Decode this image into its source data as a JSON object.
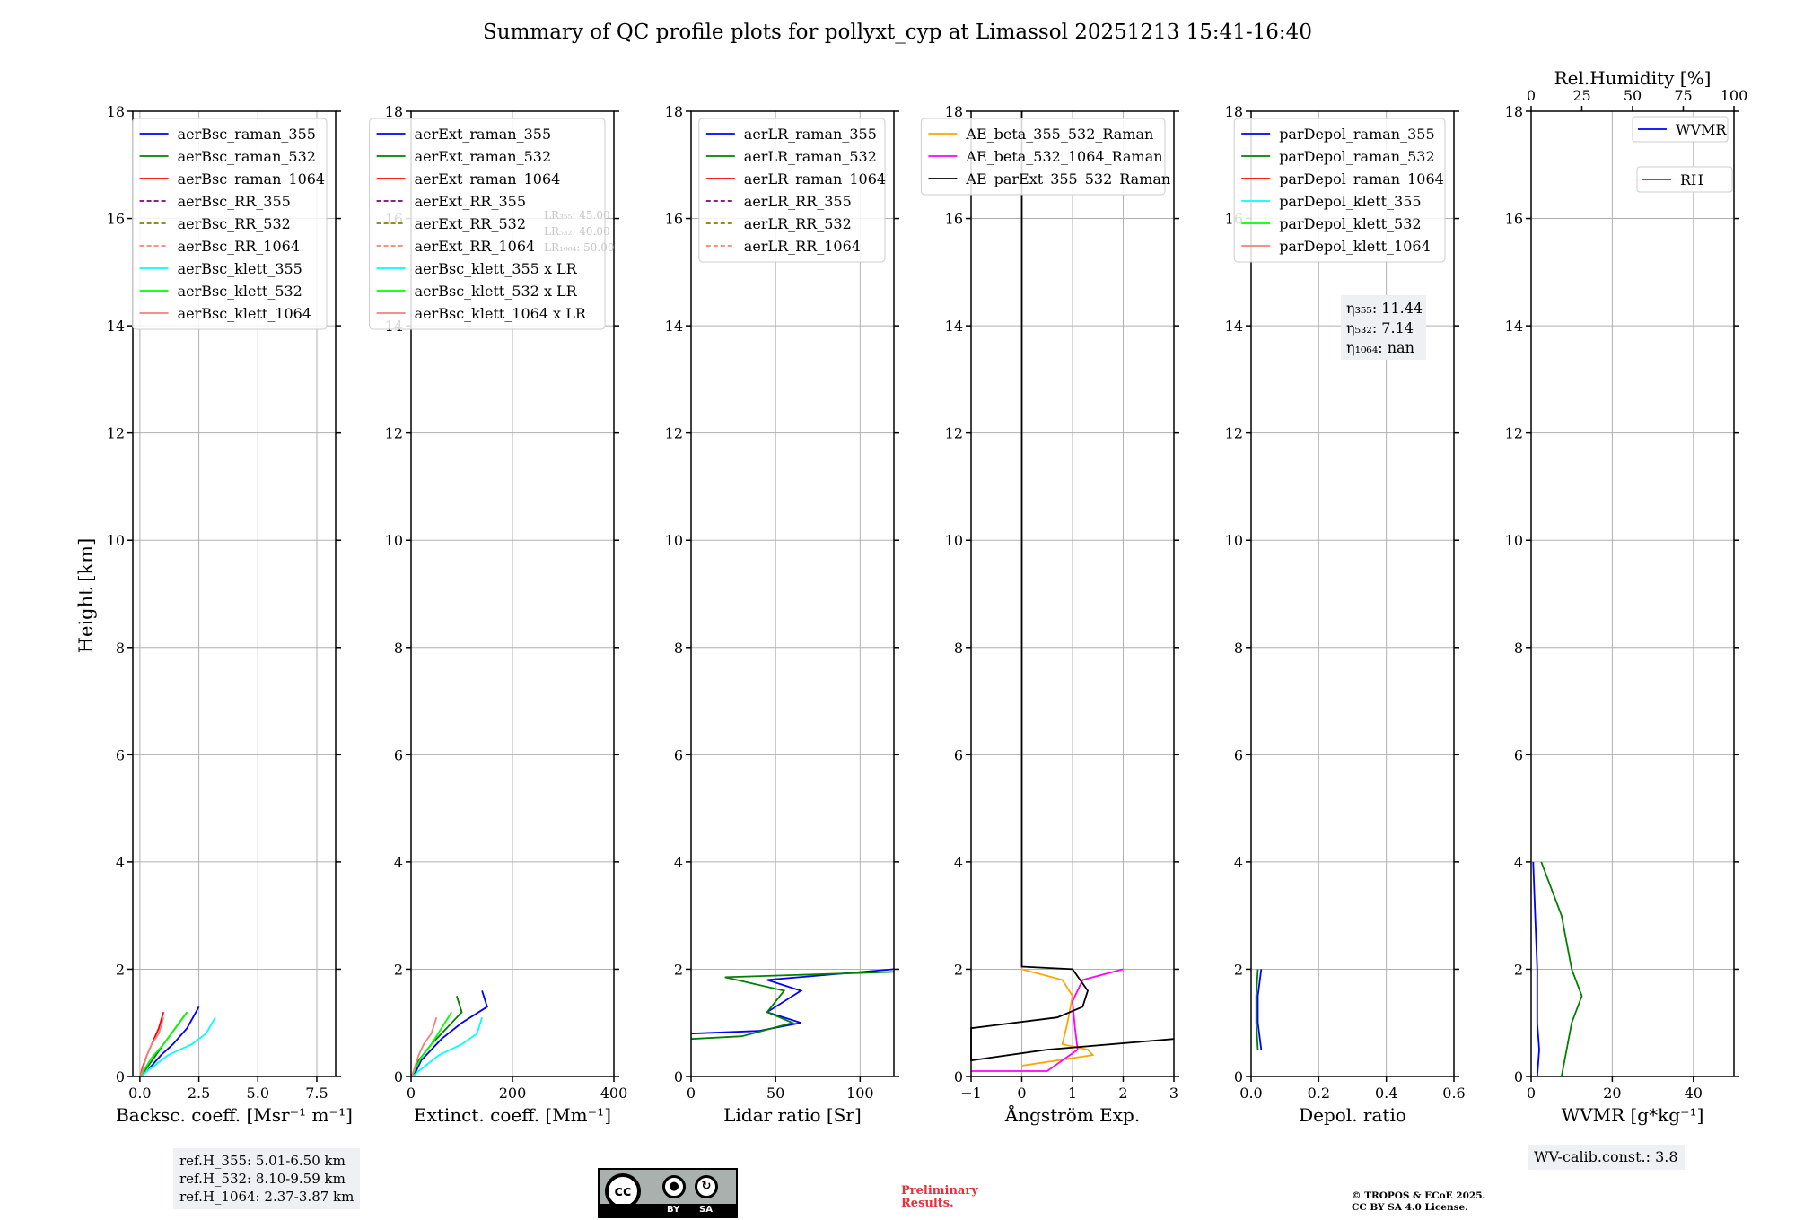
{
  "title": "Summary of QC profile plots for pollyxt_cyp at Limassol 20251213 15:41-16:40",
  "ylabel": "Height [km]",
  "ylim": [
    0,
    18
  ],
  "yticks": [
    0,
    2,
    4,
    6,
    8,
    10,
    12,
    14,
    16,
    18
  ],
  "chart_data": [
    {
      "type": "line",
      "panel": "backscatter",
      "xlabel": "Backsc. coeff. [Msr⁻¹ m⁻¹]",
      "xlim": [
        -0.3,
        8.3
      ],
      "xticks": [
        0,
        2.5,
        5,
        7.5
      ],
      "xtick_labels": [
        "0.0",
        "2.5",
        "5.0",
        "7.5"
      ],
      "legend_position": "top-right",
      "series": [
        {
          "name": "aerBsc_raman_355",
          "color": "#0000ff",
          "dash": "solid",
          "x": [
            2.5,
            2.0,
            1.4,
            0.9,
            0.3,
            0.05
          ],
          "y": [
            1.3,
            0.9,
            0.6,
            0.4,
            0.1,
            0
          ]
        },
        {
          "name": "aerBsc_raman_532",
          "color": "#008000",
          "dash": "solid",
          "x": [
            2.0,
            1.5,
            1.0,
            0.6,
            0.2,
            0.05
          ],
          "y": [
            1.2,
            0.9,
            0.6,
            0.35,
            0.1,
            0
          ]
        },
        {
          "name": "aerBsc_raman_1064",
          "color": "#ff0000",
          "dash": "solid",
          "x": [
            1.0,
            0.8,
            0.5,
            0.3,
            0.1,
            0.02
          ],
          "y": [
            1.2,
            0.9,
            0.6,
            0.4,
            0.15,
            0
          ]
        },
        {
          "name": "aerBsc_RR_355",
          "color": "#800080",
          "dash": "dashed",
          "x": [],
          "y": []
        },
        {
          "name": "aerBsc_RR_532",
          "color": "#808000",
          "dash": "dashed",
          "x": [],
          "y": []
        },
        {
          "name": "aerBsc_RR_1064",
          "color": "#fa8072",
          "dash": "dashed",
          "x": [],
          "y": []
        },
        {
          "name": "aerBsc_klett_355",
          "color": "#00ffff",
          "dash": "solid",
          "x": [
            3.2,
            2.8,
            2.2,
            1.2,
            0.3,
            0.05
          ],
          "y": [
            1.1,
            0.8,
            0.6,
            0.4,
            0.1,
            0
          ]
        },
        {
          "name": "aerBsc_klett_532",
          "color": "#00ff00",
          "dash": "solid",
          "x": [
            2.0,
            1.5,
            1.0,
            0.5,
            0.15,
            0.03
          ],
          "y": [
            1.2,
            0.9,
            0.6,
            0.35,
            0.1,
            0
          ]
        },
        {
          "name": "aerBsc_klett_1064",
          "color": "#f08080",
          "dash": "solid",
          "x": [
            1.0,
            0.8,
            0.5,
            0.3,
            0.1,
            0.02
          ],
          "y": [
            1.1,
            0.8,
            0.6,
            0.4,
            0.1,
            0
          ]
        }
      ]
    },
    {
      "type": "line",
      "panel": "extinction",
      "xlabel": "Extinct. coeff. [Mm⁻¹]",
      "xlim": [
        0,
        400
      ],
      "xticks": [
        0,
        200,
        400
      ],
      "xtick_labels": [
        "0",
        "200",
        "400"
      ],
      "legend_position": "top-right",
      "annotations": [
        "LR₃₅₅: 45.00",
        "LR₅₃₂: 40.00",
        "LR₁₀₆₄: 50.00"
      ],
      "series": [
        {
          "name": "aerExt_raman_355",
          "color": "#0000ff",
          "dash": "solid",
          "x": [
            140,
            150,
            100,
            60,
            20,
            5
          ],
          "y": [
            1.6,
            1.3,
            1.0,
            0.7,
            0.3,
            0
          ]
        },
        {
          "name": "aerExt_raman_532",
          "color": "#008000",
          "dash": "solid",
          "x": [
            90,
            100,
            70,
            40,
            15,
            3
          ],
          "y": [
            1.5,
            1.2,
            0.9,
            0.6,
            0.3,
            0
          ]
        },
        {
          "name": "aerExt_raman_1064",
          "color": "#ff0000",
          "dash": "solid",
          "x": [],
          "y": []
        },
        {
          "name": "aerExt_RR_355",
          "color": "#800080",
          "dash": "dashed",
          "x": [],
          "y": []
        },
        {
          "name": "aerExt_RR_532",
          "color": "#808000",
          "dash": "dashed",
          "x": [],
          "y": []
        },
        {
          "name": "aerExt_RR_1064",
          "color": "#fa8072",
          "dash": "dashed",
          "x": [],
          "y": []
        },
        {
          "name": "aerBsc_klett_355 x LR",
          "color": "#00ffff",
          "dash": "solid",
          "x": [
            140,
            130,
            100,
            55,
            15,
            3
          ],
          "y": [
            1.1,
            0.8,
            0.6,
            0.4,
            0.1,
            0
          ]
        },
        {
          "name": "aerBsc_klett_532 x LR",
          "color": "#00ff00",
          "dash": "solid",
          "x": [
            80,
            60,
            40,
            20,
            6,
            1
          ],
          "y": [
            1.2,
            0.9,
            0.6,
            0.35,
            0.1,
            0
          ]
        },
        {
          "name": "aerBsc_klett_1064 x LR",
          "color": "#f08080",
          "dash": "solid",
          "x": [
            50,
            40,
            25,
            15,
            5,
            1
          ],
          "y": [
            1.1,
            0.8,
            0.6,
            0.4,
            0.1,
            0
          ]
        }
      ]
    },
    {
      "type": "line",
      "panel": "lidar_ratio",
      "xlabel": "Lidar ratio [Sr]",
      "xlim": [
        0,
        120
      ],
      "xticks": [
        0,
        50,
        100
      ],
      "xtick_labels": [
        "0",
        "50",
        "100"
      ],
      "legend_position": "top-right",
      "series": [
        {
          "name": "aerLR_raman_355",
          "color": "#0000ff",
          "dash": "solid",
          "x": [
            120,
            45,
            65,
            45,
            65,
            40,
            0
          ],
          "y": [
            2.0,
            1.8,
            1.6,
            1.2,
            1.0,
            0.85,
            0.8
          ]
        },
        {
          "name": "aerLR_raman_532",
          "color": "#008000",
          "dash": "solid",
          "x": [
            120,
            20,
            55,
            45,
            60,
            30,
            0
          ],
          "y": [
            1.95,
            1.85,
            1.6,
            1.2,
            1.0,
            0.75,
            0.7
          ]
        },
        {
          "name": "aerLR_raman_1064",
          "color": "#ff0000",
          "dash": "solid",
          "x": [],
          "y": []
        },
        {
          "name": "aerLR_RR_355",
          "color": "#800080",
          "dash": "dashed",
          "x": [],
          "y": []
        },
        {
          "name": "aerLR_RR_532",
          "color": "#808000",
          "dash": "dashed",
          "x": [],
          "y": []
        },
        {
          "name": "aerLR_RR_1064",
          "color": "#fa8072",
          "dash": "dashed",
          "x": [],
          "y": []
        }
      ]
    },
    {
      "type": "line",
      "panel": "angstrom",
      "xlabel": "Ångström Exp.",
      "xlim": [
        -1,
        3
      ],
      "xticks": [
        -1,
        0,
        1,
        2,
        3
      ],
      "xtick_labels": [
        "−1",
        "0",
        "1",
        "2",
        "3"
      ],
      "legend_position": "top-right",
      "series": [
        {
          "name": "AE_beta_355_532_Raman",
          "color": "#ffa500",
          "dash": "solid",
          "x": [
            0,
            0.8,
            1.0,
            0.9,
            0.8,
            1.3,
            1.4,
            0
          ],
          "y": [
            2.0,
            1.8,
            1.5,
            1.0,
            0.6,
            0.5,
            0.4,
            0.2
          ]
        },
        {
          "name": "AE_beta_532_1064_Raman",
          "color": "#ff00ff",
          "dash": "solid",
          "x": [
            2.0,
            1.2,
            1.0,
            1.05,
            1.1,
            0.5,
            -1.0
          ],
          "y": [
            2.0,
            1.8,
            1.4,
            0.9,
            0.5,
            0.1,
            0.1
          ]
        },
        {
          "name": "AE_parExt_355_532_Raman",
          "color": "#000000",
          "dash": "solid",
          "x": [
            0,
            0,
            1.0,
            1.3,
            1.2,
            0.7,
            -1.0,
            -1.0,
            0.5,
            3.0
          ],
          "y": [
            18,
            2.05,
            2.0,
            1.6,
            1.3,
            1.1,
            0.9,
            0.3,
            0.5,
            0.7
          ]
        }
      ]
    },
    {
      "type": "line",
      "panel": "depolarization",
      "xlabel": "Depol. ratio",
      "xlim": [
        0,
        0.6
      ],
      "xticks": [
        0,
        0.2,
        0.4,
        0.6
      ],
      "xtick_labels": [
        "0.0",
        "0.2",
        "0.4",
        "0.6"
      ],
      "legend_position": "top-right",
      "annotations": [
        "η₃₅₅: 11.44",
        "η₅₃₂: 7.14",
        "η₁₀₆₄: nan"
      ],
      "series": [
        {
          "name": "parDepol_raman_355",
          "color": "#0000ff",
          "dash": "solid",
          "x": [
            0.03,
            0.02,
            0.02,
            0.03
          ],
          "y": [
            2.0,
            1.5,
            1.0,
            0.5
          ]
        },
        {
          "name": "parDepol_raman_532",
          "color": "#008000",
          "dash": "solid",
          "x": [
            0.02,
            0.015,
            0.015,
            0.02
          ],
          "y": [
            2.0,
            1.5,
            1.0,
            0.5
          ]
        },
        {
          "name": "parDepol_raman_1064",
          "color": "#ff0000",
          "dash": "solid",
          "x": [],
          "y": []
        },
        {
          "name": "parDepol_klett_355",
          "color": "#00ffff",
          "dash": "solid",
          "x": [],
          "y": []
        },
        {
          "name": "parDepol_klett_532",
          "color": "#00ff00",
          "dash": "solid",
          "x": [],
          "y": []
        },
        {
          "name": "parDepol_klett_1064",
          "color": "#f08080",
          "dash": "solid",
          "x": [],
          "y": []
        }
      ]
    },
    {
      "type": "line",
      "panel": "water_vapor",
      "xlabel": "WVMR [g*kg⁻¹]",
      "xlim": [
        0,
        50
      ],
      "xticks": [
        0,
        20,
        40
      ],
      "xtick_labels": [
        "0",
        "20",
        "40"
      ],
      "top_xlabel": "Rel.Humidity [%]",
      "top_xlim": [
        0,
        100
      ],
      "top_xticks": [
        0,
        25,
        50,
        75,
        100
      ],
      "top_xtick_labels": [
        "0",
        "25",
        "50",
        "75",
        "100"
      ],
      "legend_position": "top-right",
      "series": [
        {
          "name": "WVMR",
          "color": "#0000ff",
          "dash": "solid",
          "x": [
            0.5,
            1.0,
            1.5,
            1.5,
            2.0,
            1.5
          ],
          "y": [
            4.0,
            3.0,
            2.0,
            1.0,
            0.5,
            0
          ]
        },
        {
          "name": "RH",
          "color": "#008000",
          "dash": "solid",
          "axis": "top",
          "x": [
            5,
            10,
            15,
            20,
            25,
            20,
            15
          ],
          "y": [
            4.0,
            3.5,
            3.0,
            2.0,
            1.5,
            1.0,
            0
          ]
        }
      ]
    }
  ],
  "footer": {
    "refH": [
      "ref.H_355: 5.01-6.50 km",
      "ref.H_532: 8.10-9.59 km",
      "ref.H_1064: 2.37-3.87 km"
    ],
    "license_badge": {
      "cc": "cc",
      "by": "BY",
      "sa": "SA"
    },
    "preliminary": [
      "Preliminary",
      "Results."
    ],
    "copyright": [
      "© TROPOS & ECoE 2025.",
      "CC BY SA 4.0 License."
    ],
    "wv_calib": "WV-calib.const.: 3.8"
  }
}
